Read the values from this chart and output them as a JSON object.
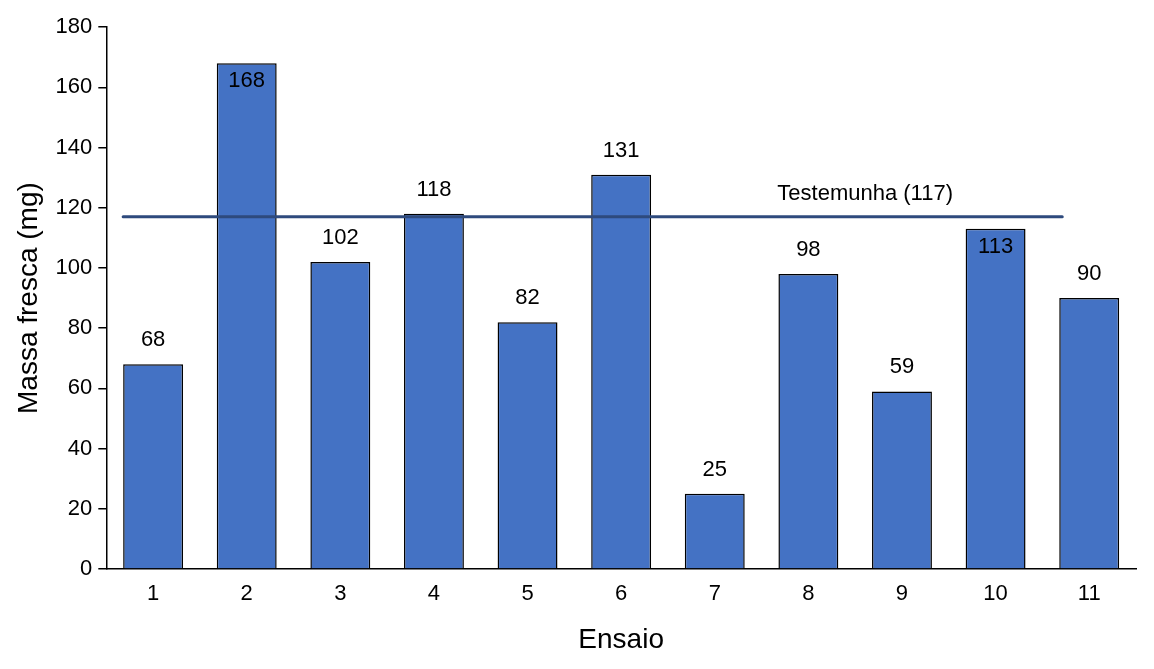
{
  "chart_data": {
    "type": "bar",
    "xlabel": "Ensaio",
    "ylabel": "Massa fresca (mg)",
    "categories": [
      "1",
      "2",
      "3",
      "4",
      "5",
      "6",
      "7",
      "8",
      "9",
      "10",
      "11"
    ],
    "values": [
      68,
      168,
      102,
      118,
      82,
      131,
      25,
      98,
      59,
      113,
      90
    ],
    "color": "#4472c4",
    "ylim": [
      0,
      180
    ],
    "yticks": [
      0,
      20,
      40,
      60,
      80,
      100,
      120,
      140,
      160,
      180
    ],
    "grid": false,
    "data_labels": true,
    "ref_lines": [
      {
        "axis": "y",
        "value": 117,
        "label": "Testemunha (117)",
        "color": "#2e4a7d"
      }
    ]
  }
}
